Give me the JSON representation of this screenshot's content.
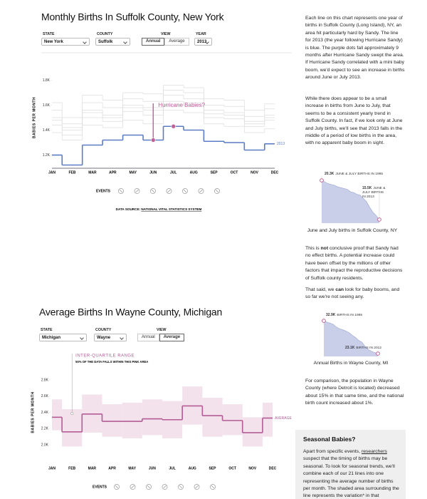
{
  "sections": [
    {
      "title": "Monthly Births In Suffolk County, New York",
      "filters": [
        {
          "label": "STATE",
          "value": "New York"
        },
        {
          "label": "COUNTY",
          "value": "Suffolk"
        },
        {
          "label": "VIEW",
          "options": [
            {
              "label": "Annual",
              "selected": true
            },
            {
              "label": "Average",
              "selected": false
            }
          ]
        },
        {
          "label": "YEAR",
          "value": "2013"
        }
      ],
      "events_label": "EVENTS",
      "source": [
        "DATA SOURCE: ",
        "NATIONAL VITAL STATISTICS SYSTEM"
      ]
    },
    {
      "title": "Average Births In Wayne County, Michigan",
      "filters": [
        {
          "label": "STATE",
          "value": "Michigan"
        },
        {
          "label": "COUNTY",
          "value": "Wayne"
        },
        {
          "label": "VIEW",
          "options": [
            {
              "label": "Annual",
              "selected": false
            },
            {
              "label": "Average",
              "selected": true
            }
          ]
        }
      ],
      "events_label": "EVENTS"
    }
  ],
  "chart_data": [
    {
      "type": "step",
      "y_label": "BABIES PER MONTH",
      "categories": [
        "JAN",
        "FEB",
        "MAR",
        "APR",
        "MAY",
        "JUN",
        "JUL",
        "AUG",
        "SEP",
        "OCT",
        "NOV",
        "DEC"
      ],
      "ylim": [
        1100,
        1900
      ],
      "yticks": [
        {
          "value": 1200,
          "label": "1.2K"
        },
        {
          "value": 1400,
          "label": "1.4K"
        },
        {
          "value": 1600,
          "label": "1.6K"
        },
        {
          "value": 1800,
          "label": "1.8K"
        }
      ],
      "series": [
        {
          "color": "#dcdcdc",
          "values": [
            1500,
            1400,
            1560,
            1520,
            1600,
            1580,
            1680,
            1650,
            1560,
            1540,
            1470,
            1520
          ]
        },
        {
          "color": "#dcdcdc",
          "values": [
            1560,
            1450,
            1620,
            1580,
            1650,
            1630,
            1720,
            1700,
            1600,
            1590,
            1510,
            1570
          ]
        },
        {
          "color": "#dcdcdc",
          "values": [
            1440,
            1360,
            1500,
            1470,
            1550,
            1520,
            1630,
            1600,
            1500,
            1490,
            1430,
            1480
          ]
        },
        {
          "color": "#dcdcdc",
          "values": [
            1620,
            1500,
            1680,
            1640,
            1700,
            1690,
            1760,
            1740,
            1650,
            1640,
            1560,
            1610
          ]
        },
        {
          "color": "#dcdcdc",
          "values": [
            1380,
            1320,
            1440,
            1420,
            1480,
            1450,
            1560,
            1540,
            1450,
            1430,
            1380,
            1410
          ]
        },
        {
          "color": "#dcdcdc",
          "values": [
            1480,
            1420,
            1540,
            1500,
            1580,
            1560,
            1600,
            1620,
            1530,
            1520,
            1450,
            1500
          ]
        },
        {
          "name": "2013",
          "color": "#5b7cc4",
          "values": [
            1200,
            1120,
            1280,
            1320,
            1360,
            1320,
            1430,
            1400,
            1310,
            1300,
            1240,
            1290
          ]
        }
      ],
      "annotation": "Hurricane Babies?",
      "highlight": [
        "JUN",
        "JUL"
      ],
      "highlight_color": "#c0609a"
    },
    {
      "type": "step",
      "y_label": "BABIES PER MONTH",
      "categories": [
        "JAN",
        "FEB",
        "MAR",
        "APR",
        "MAY",
        "JUN",
        "JUL",
        "AUG",
        "SEP",
        "OCT",
        "NOV",
        "DEC"
      ],
      "ylim": [
        1900,
        2900
      ],
      "yticks": [
        {
          "value": 2000,
          "label": "2.0K"
        },
        {
          "value": 2200,
          "label": "2.2K"
        },
        {
          "value": 2400,
          "label": "2.4K"
        },
        {
          "value": 2600,
          "label": "2.6K"
        },
        {
          "value": 2800,
          "label": "2.8K"
        }
      ],
      "series": [
        {
          "name": "AVERAGE",
          "color": "#b35c96",
          "values": [
            2340,
            2160,
            2380,
            2290,
            2290,
            2320,
            2310,
            2480,
            2360,
            2300,
            2150,
            2330
          ]
        }
      ],
      "band": {
        "name": "INTER-QUARTILE RANGE",
        "note": "50% OF THE DATA FALLS WITHIN THIS PINK AREA",
        "color": "#f3e1ec",
        "low": [
          2180,
          1980,
          2150,
          2100,
          2080,
          2120,
          2080,
          2250,
          2100,
          2120,
          1980,
          2100
        ],
        "high": [
          2560,
          2440,
          2620,
          2500,
          2520,
          2560,
          2540,
          2720,
          2580,
          2500,
          2340,
          2520
        ]
      }
    },
    {
      "type": "area",
      "color": "#c9cfe9",
      "marker_color": "#c0609a",
      "values": [
        20300,
        20100,
        19900,
        19800,
        19700,
        19500,
        19400,
        19300,
        19200,
        18900,
        18800,
        18600,
        18500,
        18100,
        17700,
        17000,
        16400,
        16000,
        15500
      ],
      "value_labels": [
        "20.3K",
        null,
        null,
        null,
        null,
        null,
        null,
        null,
        null,
        null,
        null,
        null,
        null,
        null,
        null,
        null,
        null,
        null,
        "15.5K"
      ],
      "notes": [
        "JUNE & JULY BIRTHS IN 1995",
        "JUNE & JULY BIRTHS IN 2013"
      ],
      "caption": "June and July births in Suffolk County, NY"
    },
    {
      "type": "area",
      "color": "#c9cfe9",
      "marker_color": "#c0609a",
      "values": [
        32900,
        32500,
        32200,
        31800,
        31000,
        30500,
        30200,
        29800,
        29300,
        28500,
        27900,
        27000,
        26500,
        25200,
        24300,
        23800,
        23400,
        23100
      ],
      "value_labels": [
        "32.9K",
        null,
        null,
        null,
        null,
        null,
        null,
        null,
        null,
        null,
        null,
        null,
        null,
        null,
        null,
        null,
        null,
        "23.1K"
      ],
      "notes": [
        "BIRTHS IN 1995",
        "BIRTHS IN 2012"
      ],
      "caption": "Annual Births in Wayne County, MI"
    }
  ],
  "sidebar": {
    "p1": "Each line on this chart represents one year of births in Suffolk County (Long Island), NY, an area hit particularly hard by Sandy. The line for 2013 (the year following Hurricane Sandy) is blue. The purple dots fall approximately 9 months after Hurricane Sandy swept the area. If Hurricane Sandy correlated with a mini baby boom, we'd expect to see an increase in births around June or July 2013.",
    "p2": "While there does appear to be a small increase in births from June to July, that seems to be a consistent yearly trend in Suffolk County. In fact, if we look only at June and July births, we'll see that 2013 falls in the middle of a period of low births in the area, with no apparent baby boom in sight.",
    "p3": [
      "This is ",
      "not",
      " conclusive proof that Sandy had no effect births. A potential increase could have been offset by the millions of other factors that impact the reproductive decisions of Suffolk county residents."
    ],
    "p4": [
      "That said, we ",
      "can",
      " look for baby booms, and so far we're not seeing any."
    ],
    "p5": "For comparison, the population in Wayne County (where Detroit is located) decreased about 15% in that same time, and the national birth count increased about 1%.",
    "box_title": "Seasonal Babies?",
    "box_text": [
      "Apart from specific events, ",
      "researchers",
      " suspect that the timing of births may be seasonal. To look for seasonal trends, we'll combine each of our 21 lines into one representing the average number of births per month. The shaded area surrounding the line represents the variation* in that"
    ]
  }
}
